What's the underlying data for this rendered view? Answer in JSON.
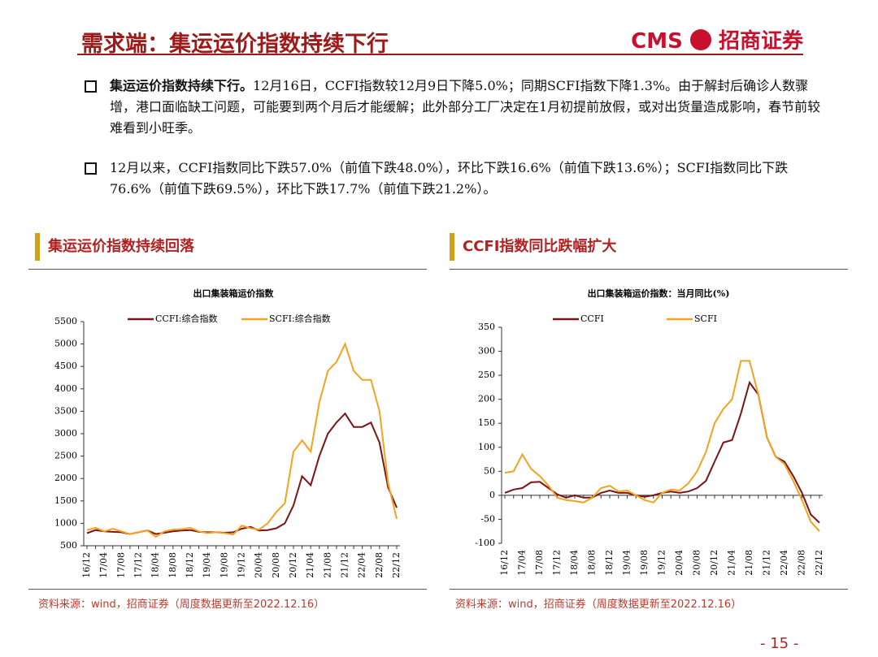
{
  "header": {
    "title": "需求端：集运运价指数持续下行",
    "logo_en": "CMS",
    "logo_cn": "招商证券"
  },
  "bullets": [
    {
      "lead": "集运运价指数持续下行。",
      "text": "12月16日，CCFI指数较12月9日下降5.0%；同期SCFI指数下降1.3%。由于解封后确诊人数骤增，港口面临缺工问题，可能要到两个月后才能缓解；此外部分工厂决定在1月初提前放假，或对出货量造成影响，春节前较难看到小旺季。"
    },
    {
      "text": "12月以来，CCFI指数同比下跌57.0%（前值下跌48.0%），环比下跌16.6%（前值下跌13.6%）；SCFI指数同比下跌76.6%（前值下跌69.5%），环比下跌17.7%（前值下跌21.2%）。"
    }
  ],
  "sections": [
    "集运运价指数持续回落",
    "CCFI指数同比跌幅扩大"
  ],
  "sources": [
    "资料来源：wind，招商证券（周度数据更新至2022.12.16）",
    "资料来源：wind，招商证券（周度数据更新至2022.12.16）"
  ],
  "page_number": "- 15 -",
  "chart_data": [
    {
      "type": "line",
      "title": "出口集装箱运价指数",
      "categories": [
        "16/12",
        null,
        "17/04",
        null,
        "17/08",
        null,
        "17/12",
        null,
        "18/04",
        null,
        "18/08",
        null,
        "18/12",
        null,
        "19/04",
        null,
        "19/08",
        null,
        "19/12",
        null,
        "20/04",
        null,
        "20/08",
        null,
        "20/12",
        null,
        "21/04",
        null,
        "21/08",
        null,
        "21/12",
        null,
        "22/04",
        null,
        "22/08",
        null,
        "22/12"
      ],
      "series": [
        {
          "name": "CCFI:综合指数",
          "color": "#7b1416",
          "values": [
            780,
            850,
            820,
            810,
            800,
            760,
            800,
            840,
            760,
            790,
            820,
            840,
            850,
            810,
            800,
            800,
            790,
            800,
            880,
            920,
            840,
            850,
            890,
            1000,
            1400,
            2050,
            1850,
            2500,
            3000,
            3250,
            3450,
            3150,
            3150,
            3250,
            2800,
            1800,
            1350
          ]
        },
        {
          "name": "SCFI:综合指数",
          "color": "#f5a21f",
          "values": [
            850,
            900,
            820,
            880,
            820,
            760,
            800,
            840,
            700,
            820,
            860,
            870,
            900,
            820,
            780,
            800,
            780,
            750,
            950,
            890,
            860,
            1000,
            1250,
            1450,
            2600,
            2850,
            2600,
            3700,
            4400,
            4600,
            5000,
            4400,
            4200,
            4200,
            3500,
            1900,
            1100
          ]
        }
      ],
      "ylim": [
        500,
        5500
      ],
      "yticks": [
        500,
        1000,
        1500,
        2000,
        2500,
        3000,
        3500,
        4000,
        4500,
        5000,
        5500
      ]
    },
    {
      "type": "line",
      "title": "出口集装箱运价指数：当月同比(%)",
      "categories": [
        "16/12",
        null,
        "17/04",
        null,
        "17/08",
        null,
        "17/12",
        null,
        "18/04",
        null,
        "18/08",
        null,
        "18/12",
        null,
        "19/04",
        null,
        "19/08",
        null,
        "19/12",
        null,
        "20/04",
        null,
        "20/08",
        null,
        "20/12",
        null,
        "21/04",
        null,
        "21/08",
        null,
        "21/12",
        null,
        "22/04",
        null,
        "22/08",
        null,
        "22/12"
      ],
      "series": [
        {
          "name": "CCFI",
          "color": "#7b1416",
          "values": [
            5,
            12,
            15,
            27,
            28,
            15,
            2,
            -5,
            0,
            -5,
            -5,
            5,
            10,
            5,
            5,
            0,
            -3,
            0,
            5,
            8,
            5,
            8,
            15,
            30,
            70,
            110,
            115,
            170,
            235,
            210,
            120,
            80,
            70,
            40,
            5,
            -40,
            -57
          ]
        },
        {
          "name": "SCFI",
          "color": "#f5a21f",
          "values": [
            47,
            50,
            85,
            55,
            40,
            20,
            -5,
            -10,
            -12,
            -15,
            -5,
            15,
            20,
            8,
            10,
            0,
            -10,
            -15,
            5,
            12,
            10,
            25,
            50,
            90,
            150,
            180,
            200,
            280,
            280,
            210,
            120,
            80,
            65,
            30,
            -10,
            -55,
            -75
          ]
        }
      ],
      "ylim": [
        -100,
        350
      ],
      "yticks": [
        -100,
        -50,
        0,
        50,
        100,
        150,
        200,
        250,
        300,
        350
      ]
    }
  ]
}
